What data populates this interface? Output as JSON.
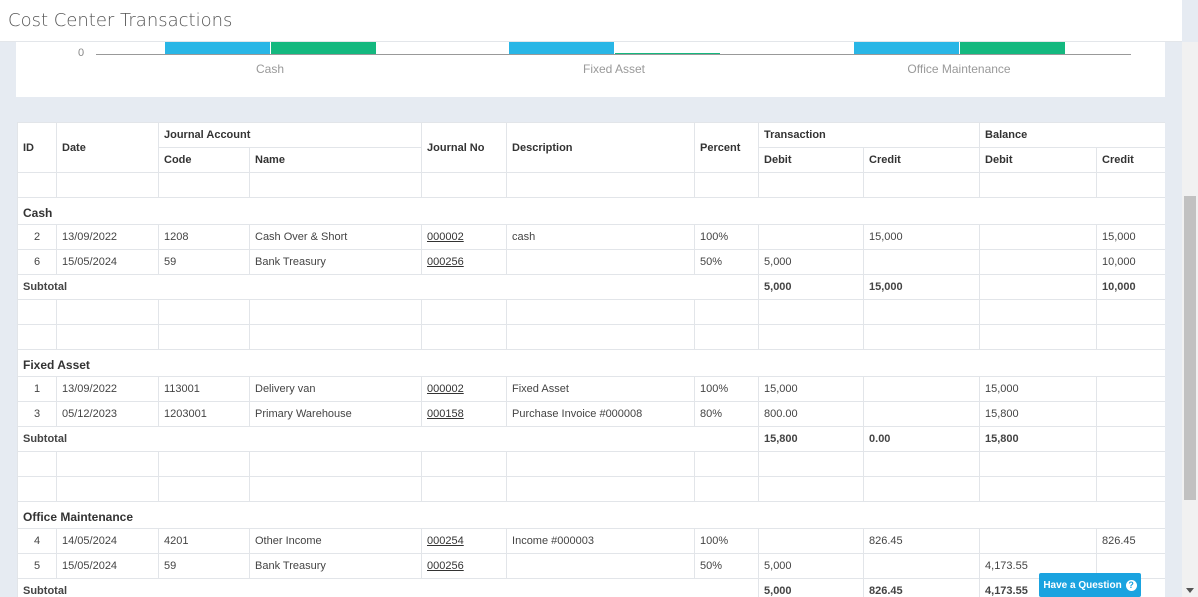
{
  "page": {
    "title": "Cost Center Transactions"
  },
  "chart_data": {
    "type": "bar",
    "categories": [
      "Cash",
      "Fixed Asset",
      "Office Maintenance"
    ],
    "series": [
      {
        "color": "#29b6e6",
        "values": [
          5000,
          15800,
          5000
        ]
      },
      {
        "color": "#14b87f",
        "values": [
          15000,
          0,
          826.45
        ]
      }
    ],
    "y_tick_visible": "0"
  },
  "table": {
    "headers": {
      "id": "ID",
      "date": "Date",
      "journal_account": "Journal Account",
      "code": "Code",
      "name": "Name",
      "journal_no": "Journal No",
      "description": "Description",
      "percent": "Percent",
      "transaction": "Transaction",
      "balance": "Balance",
      "debit": "Debit",
      "credit": "Credit"
    },
    "subtotal_label": "Subtotal",
    "groups": [
      {
        "title": "Cash",
        "rows": [
          {
            "id": "2",
            "date": "13/09/2022",
            "code": "1208",
            "name": "Cash Over & Short",
            "journal_no": "000002",
            "description": "cash",
            "percent": "100%",
            "t_debit": "",
            "t_credit": "15,000",
            "b_debit": "",
            "b_credit": "15,000"
          },
          {
            "id": "6",
            "date": "15/05/2024",
            "code": "59",
            "name": "Bank Treasury",
            "journal_no": "000256",
            "description": "",
            "percent": "50%",
            "t_debit": "5,000",
            "t_credit": "",
            "b_debit": "",
            "b_credit": "10,000"
          }
        ],
        "subtotal": {
          "t_debit": "5,000",
          "t_credit": "15,000",
          "b_debit": "",
          "b_credit": "10,000"
        }
      },
      {
        "title": "Fixed Asset",
        "rows": [
          {
            "id": "1",
            "date": "13/09/2022",
            "code": "113001",
            "name": "Delivery van",
            "journal_no": "000002",
            "description": "Fixed Asset",
            "percent": "100%",
            "t_debit": "15,000",
            "t_credit": "",
            "b_debit": "15,000",
            "b_credit": ""
          },
          {
            "id": "3",
            "date": "05/12/2023",
            "code": "1203001",
            "name": "Primary Warehouse",
            "journal_no": "000158",
            "description": "Purchase Invoice #000008",
            "percent": "80%",
            "t_debit": "800.00",
            "t_credit": "",
            "b_debit": "15,800",
            "b_credit": ""
          }
        ],
        "subtotal": {
          "t_debit": "15,800",
          "t_credit": "0.00",
          "b_debit": "15,800",
          "b_credit": ""
        }
      },
      {
        "title": "Office Maintenance",
        "rows": [
          {
            "id": "4",
            "date": "14/05/2024",
            "code": "4201",
            "name": "Other Income",
            "journal_no": "000254",
            "description": "Income #000003",
            "percent": "100%",
            "t_debit": "",
            "t_credit": "826.45",
            "b_debit": "",
            "b_credit": "826.45"
          },
          {
            "id": "5",
            "date": "15/05/2024",
            "code": "59",
            "name": "Bank Treasury",
            "journal_no": "000256",
            "description": "",
            "percent": "50%",
            "t_debit": "5,000",
            "t_credit": "",
            "b_debit": "4,173.55",
            "b_credit": ""
          }
        ],
        "subtotal": {
          "t_debit": "5,000",
          "t_credit": "826.45",
          "b_debit": "4,173.55",
          "b_credit": ""
        }
      }
    ]
  },
  "help": {
    "label": "Have a Question",
    "icon": "question-circle-icon"
  }
}
